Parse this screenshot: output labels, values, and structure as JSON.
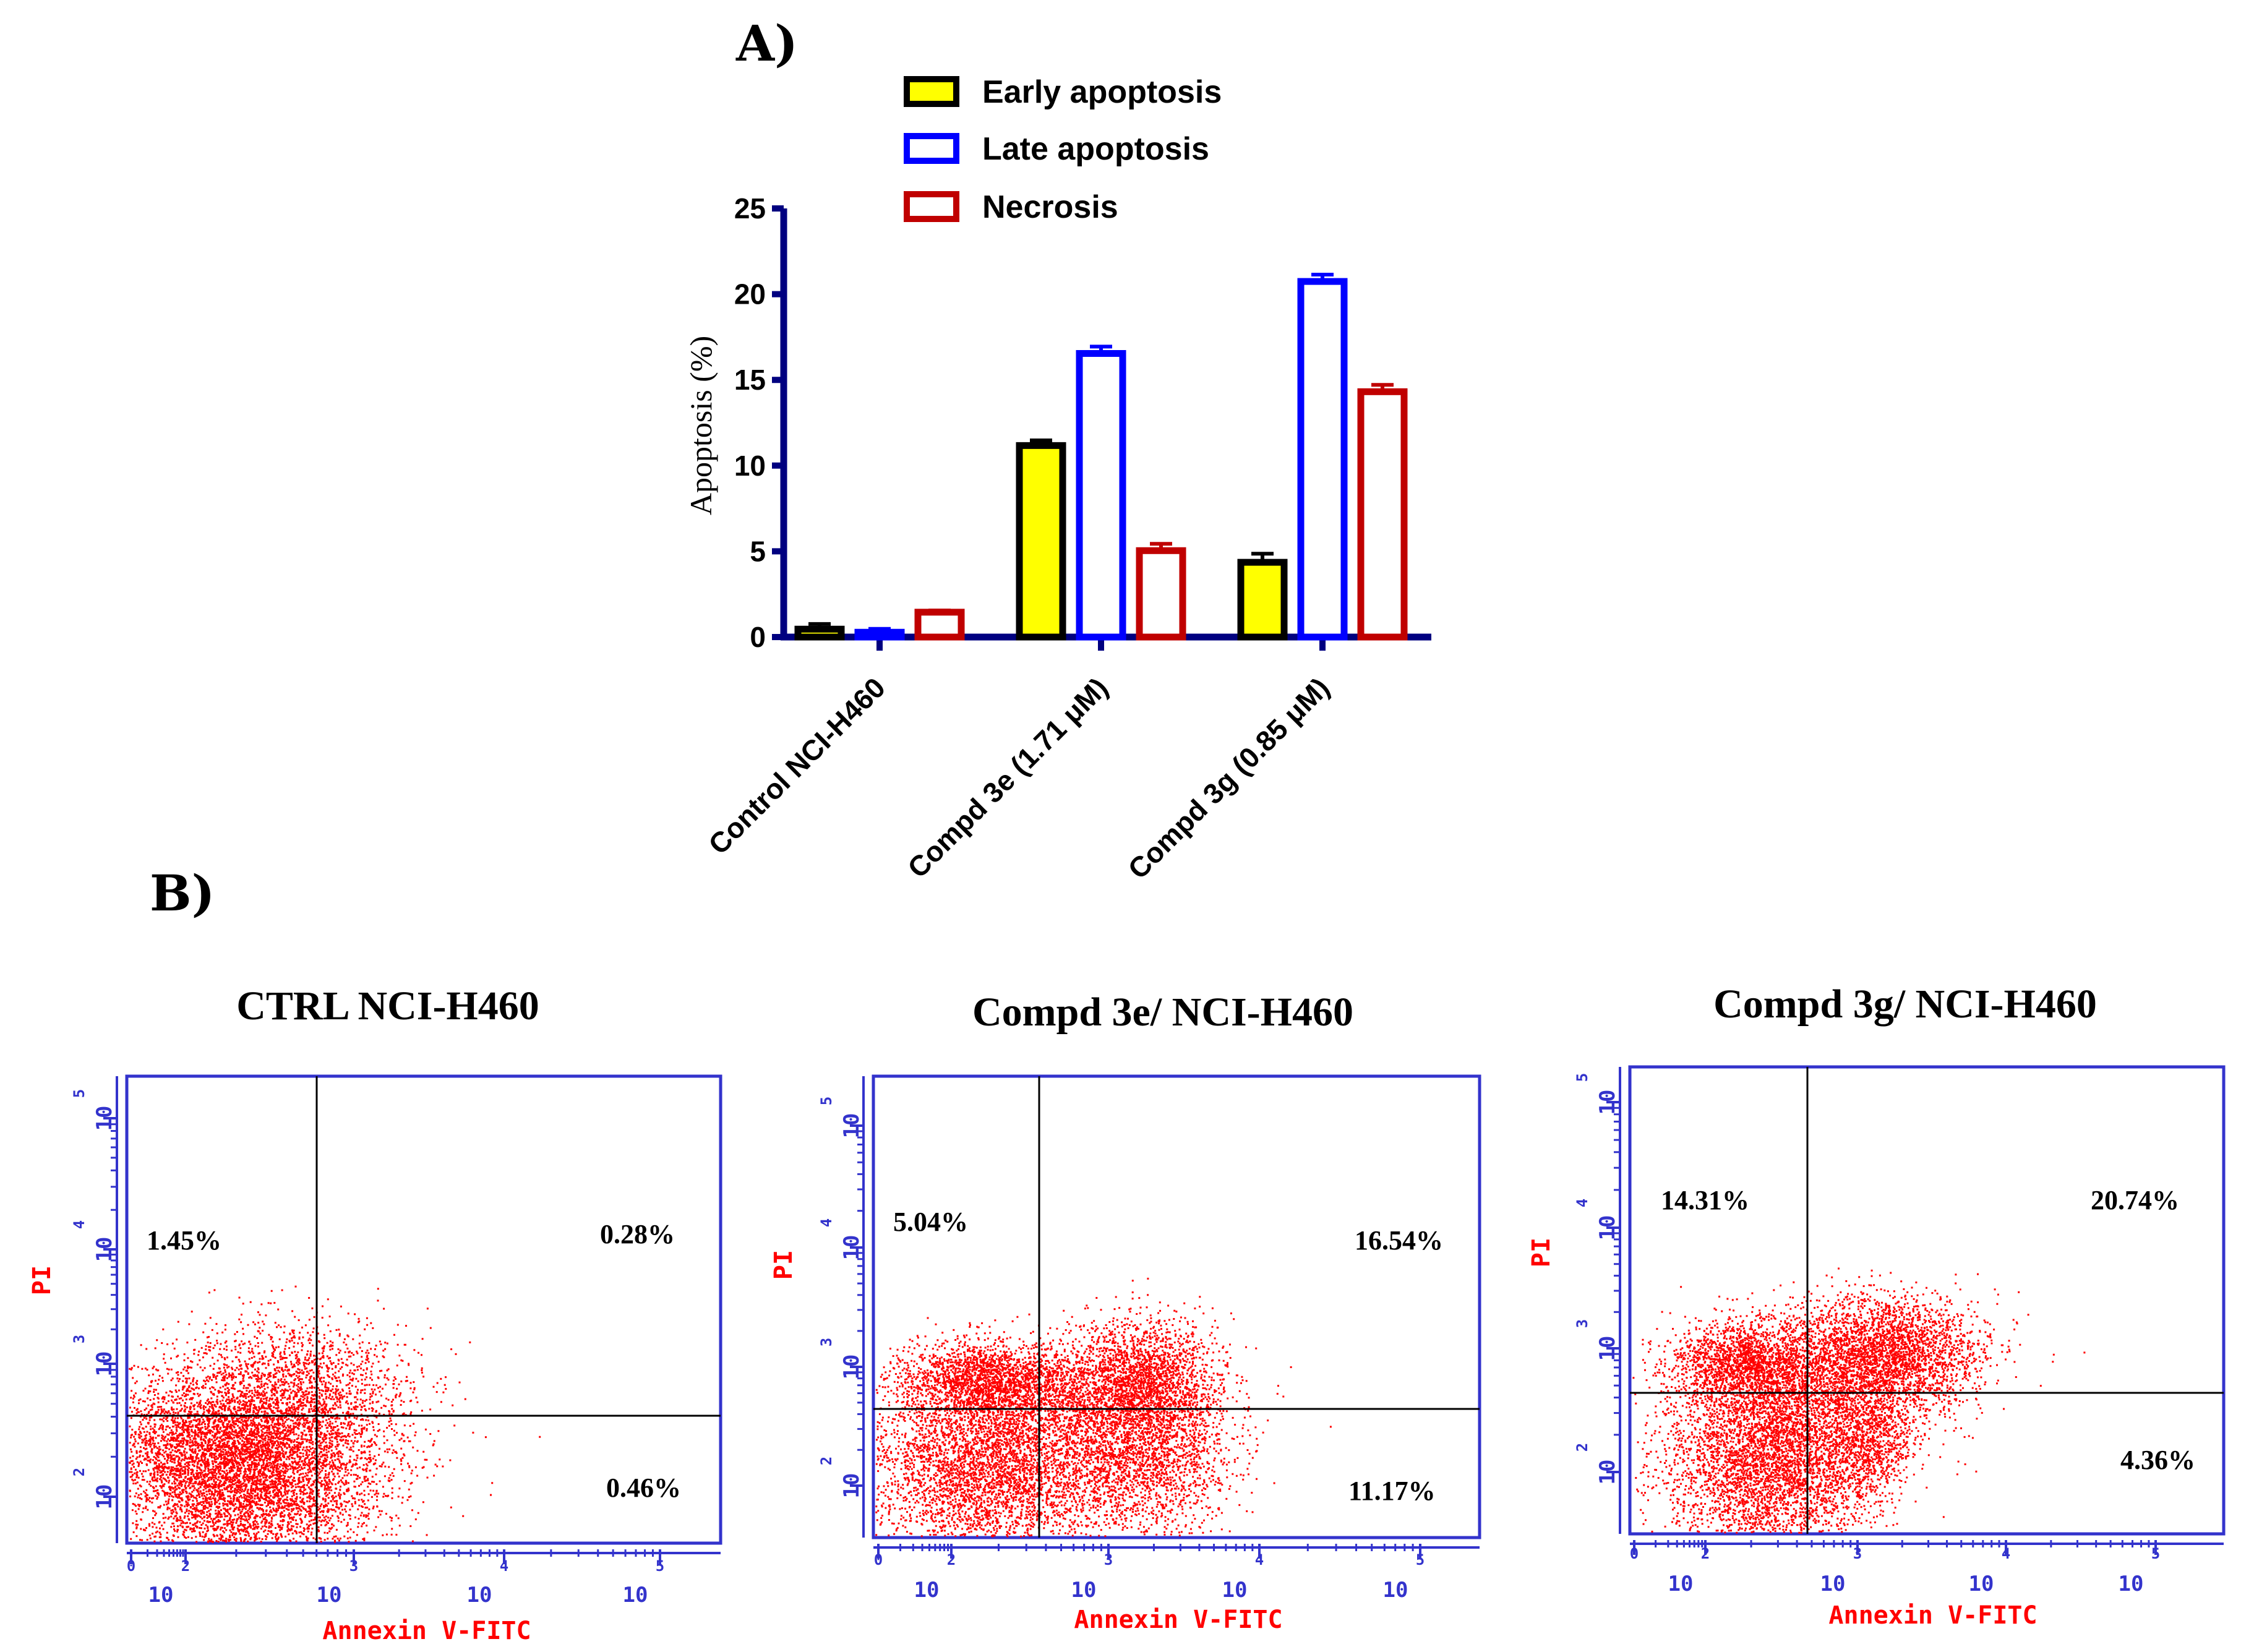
{
  "panel_a_label": "A)",
  "panel_b_label": "B)",
  "colors": {
    "early_fill": "#ffff00",
    "late_stroke": "#0000ff",
    "necrosis_stroke": "#c00000",
    "axis": "#000080",
    "flow_frame": "#3333cc",
    "flow_dots": "#ff0000"
  },
  "chart_data": [
    {
      "type": "bar",
      "title": "A)",
      "ylabel": "Apoptosis (%)",
      "xlabel": "",
      "ylim": [
        0,
        25
      ],
      "yticks": [
        "0",
        "5",
        "10",
        "15",
        "20",
        "25"
      ],
      "categories": [
        "Control NCI-H460",
        "Compd 3e (1.71 μM)",
        "Compd 3g (0.85 μM)"
      ],
      "legend_position": "top",
      "series": [
        {
          "name": "Early apoptosis",
          "values": [
            0.46,
            11.17,
            4.36
          ],
          "errors": [
            0.3,
            0.3,
            0.5
          ]
        },
        {
          "name": "Late apoptosis",
          "values": [
            0.28,
            16.54,
            20.74
          ],
          "errors": [
            0.2,
            0.4,
            0.4
          ]
        },
        {
          "name": "Necrosis",
          "values": [
            1.45,
            5.04,
            14.31
          ],
          "errors": [
            0.1,
            0.4,
            0.4
          ]
        }
      ]
    }
  ],
  "flow_panels": [
    {
      "title": "CTRL NCI-H460",
      "quadrants": {
        "upper_left": "1.45%",
        "upper_right": "0.28%",
        "lower_right": "0.46%"
      },
      "x_axis_label": "Annexin V-FITC",
      "y_axis_label": "PI"
    },
    {
      "title": "Compd 3e/ NCI-H460",
      "quadrants": {
        "upper_left": "5.04%",
        "upper_right": "16.54%",
        "lower_right": "11.17%"
      },
      "x_axis_label": "Annexin V-FITC",
      "y_axis_label": "PI"
    },
    {
      "title": "Compd 3g/ NCI-H460",
      "quadrants": {
        "upper_left": "14.31%",
        "upper_right": "20.74%",
        "lower_right": "4.36%"
      },
      "x_axis_label": "Annexin V-FITC",
      "y_axis_label": "PI"
    }
  ],
  "flow_axis": {
    "base": "10",
    "x_exponents": [
      "0",
      "2",
      "3",
      "4",
      "5"
    ],
    "y_exponents": [
      "2",
      "3",
      "4",
      "5"
    ]
  }
}
